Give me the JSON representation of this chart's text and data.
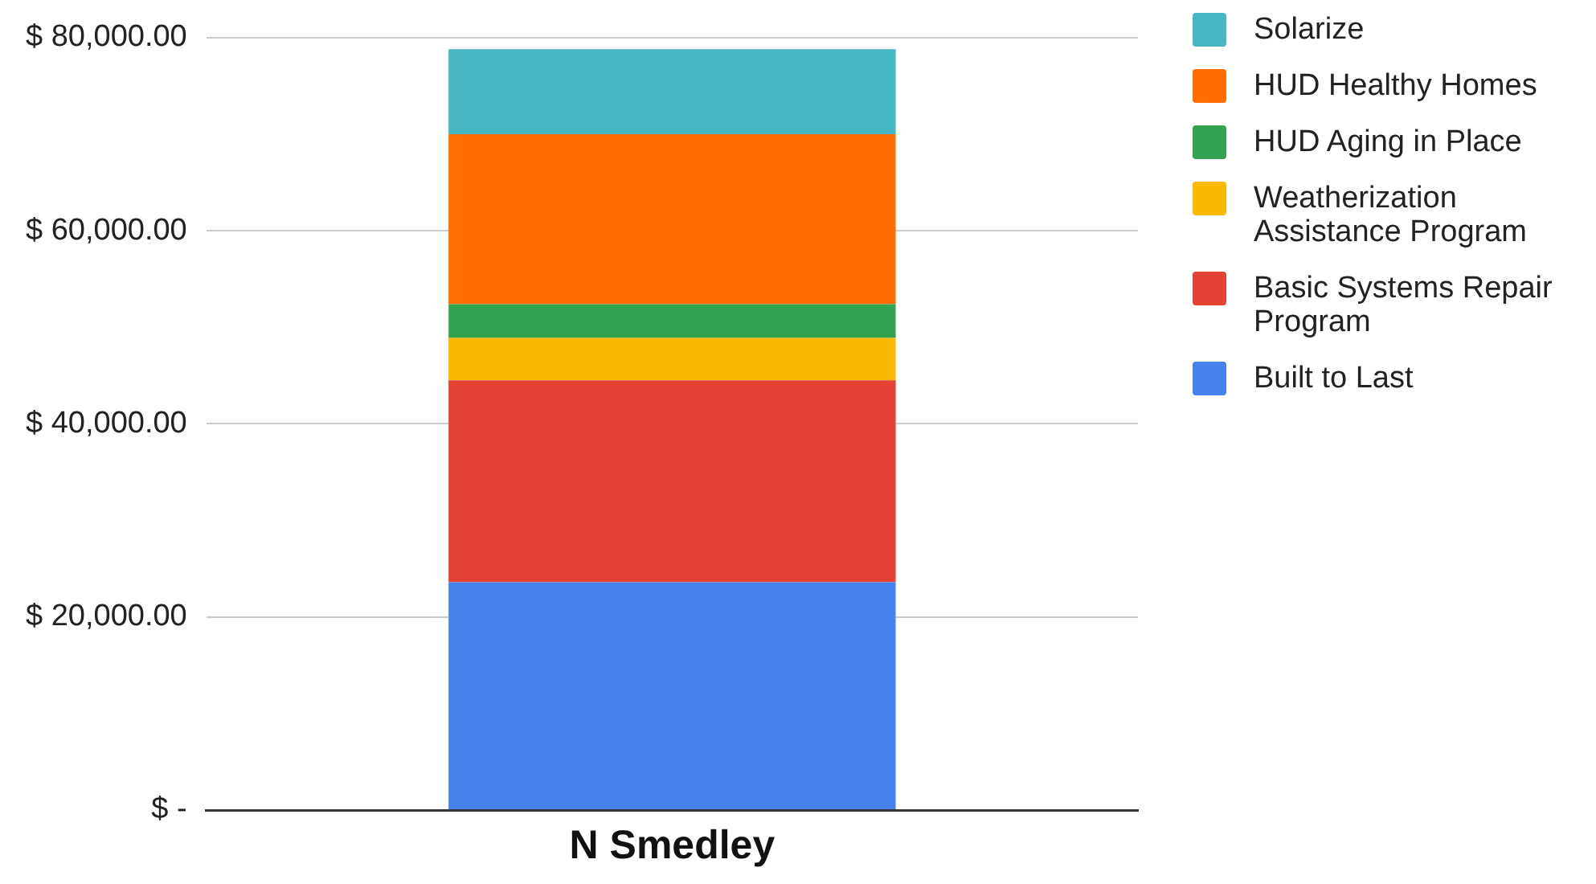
{
  "chart_data": {
    "type": "bar",
    "stacked": true,
    "categories": [
      "N Smedley"
    ],
    "series": [
      {
        "name": "Built to Last",
        "color": "#4582ee",
        "values": [
          23600
        ]
      },
      {
        "name": "Basic Systems Repair Program",
        "color": "#e44235",
        "values": [
          20900
        ]
      },
      {
        "name": "Weatherization Assistance Program",
        "color": "#f9b905",
        "values": [
          4400
        ]
      },
      {
        "name": "HUD Aging in Place",
        "color": "#33a351",
        "values": [
          3500
        ]
      },
      {
        "name": "HUD Healthy Homes",
        "color": "#ff6d00",
        "values": [
          17600
        ]
      },
      {
        "name": "Solarize",
        "color": "#47b8c3",
        "values": [
          8800
        ]
      }
    ],
    "ylim": [
      0,
      80000
    ],
    "yticks": [
      {
        "value": 0,
        "label": "$ -"
      },
      {
        "value": 20000,
        "label": "$ 20,000.00"
      },
      {
        "value": 40000,
        "label": "$ 40,000.00"
      },
      {
        "value": 60000,
        "label": "$ 60,000.00"
      },
      {
        "value": 80000,
        "label": "$ 80,000.00"
      }
    ],
    "grid": "y",
    "legend": "right"
  }
}
